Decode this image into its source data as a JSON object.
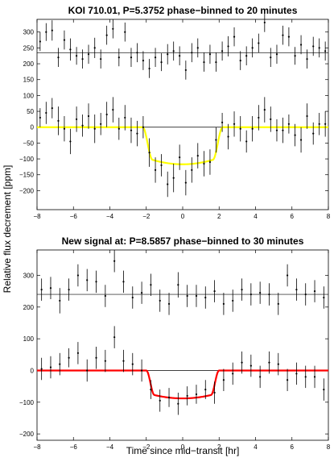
{
  "figure": {
    "ylabel": "Relative flux decrement [ppm]",
    "xlabel": "Time since mid−transit [hr]"
  },
  "chart_data": [
    {
      "type": "scatter",
      "title": "KOI 710.01, P=5.3752 phase−binned to 20 minutes",
      "xlim": [
        -8,
        8
      ],
      "ylim": [
        -260,
        340
      ],
      "xticks": [
        -8,
        -6,
        -4,
        -2,
        0,
        2,
        4,
        6,
        8
      ],
      "yticks": [
        -200,
        -150,
        -100,
        -50,
        0,
        50,
        100,
        150,
        200,
        250,
        300
      ],
      "reference_lines": [
        0,
        235
      ],
      "model_color": "#ffff00",
      "model": {
        "depth": 117,
        "t_start": 2.2,
        "ingress": 0.55
      },
      "series": [
        {
          "offset": 235,
          "x": [
            -7.83,
            -7.5,
            -7.17,
            -6.83,
            -6.5,
            -6.17,
            -5.83,
            -5.5,
            -5.17,
            -4.83,
            -4.5,
            -4.17,
            -3.83,
            -3.5,
            -3.17,
            -2.83,
            -2.5,
            -2.17,
            -1.83,
            -1.5,
            -1.17,
            -0.83,
            -0.5,
            -0.17,
            0.17,
            0.5,
            0.83,
            1.17,
            1.5,
            1.83,
            2.17,
            2.5,
            2.83,
            3.17,
            3.5,
            3.83,
            4.17,
            4.5,
            4.83,
            5.17,
            5.5,
            5.83,
            6.17,
            6.5,
            6.83,
            7.17,
            7.5,
            7.83
          ],
          "y": [
            35,
            65,
            70,
            -15,
            40,
            10,
            -10,
            -20,
            -5,
            15,
            -20,
            55,
            75,
            -15,
            65,
            -15,
            0,
            -25,
            -50,
            -15,
            -30,
            -5,
            5,
            -10,
            -55,
            0,
            15,
            -30,
            -5,
            -30,
            5,
            20,
            50,
            -25,
            -10,
            15,
            30,
            95,
            -15,
            -5,
            55,
            50,
            -10,
            25,
            -20,
            20,
            15,
            5
          ],
          "err": [
            30,
            28,
            32,
            30,
            30,
            35,
            28,
            30,
            30,
            32,
            30,
            30,
            30,
            28,
            30,
            30,
            30,
            30,
            30,
            30,
            28,
            32,
            30,
            30,
            30,
            30,
            30,
            30,
            30,
            30,
            30,
            32,
            30,
            30,
            30,
            30,
            30,
            30,
            30,
            30,
            30,
            30,
            28,
            30,
            30,
            30,
            30,
            30
          ]
        },
        {
          "offset": 0,
          "x": [
            -7.83,
            -7.5,
            -7.17,
            -6.83,
            -6.5,
            -6.17,
            -5.83,
            -5.5,
            -5.17,
            -4.83,
            -4.5,
            -4.17,
            -3.83,
            -3.5,
            -3.17,
            -2.83,
            -2.5,
            -2.17,
            -1.83,
            -1.5,
            -1.17,
            -0.83,
            -0.5,
            -0.17,
            0.17,
            0.5,
            0.83,
            1.17,
            1.5,
            1.83,
            2.17,
            2.5,
            2.83,
            3.17,
            3.5,
            3.83,
            4.17,
            4.5,
            4.83,
            5.17,
            5.5,
            5.83,
            6.17,
            6.5,
            6.83,
            7.17,
            7.5,
            7.83
          ],
          "y": [
            30,
            45,
            60,
            20,
            -5,
            -45,
            25,
            5,
            35,
            -5,
            10,
            40,
            55,
            -5,
            30,
            -10,
            -20,
            0,
            -80,
            -135,
            -120,
            -180,
            -160,
            -95,
            -175,
            -135,
            -90,
            -115,
            -110,
            -40,
            15,
            -30,
            10,
            -5,
            -45,
            -5,
            30,
            55,
            25,
            -10,
            -10,
            10,
            -25,
            -40,
            35,
            -20,
            10,
            10
          ],
          "err": [
            30,
            35,
            32,
            45,
            40,
            40,
            40,
            35,
            40,
            45,
            35,
            40,
            40,
            35,
            40,
            40,
            40,
            35,
            45,
            40,
            35,
            40,
            45,
            40,
            40,
            40,
            40,
            40,
            40,
            40,
            30,
            40,
            40,
            40,
            35,
            40,
            40,
            40,
            40,
            35,
            40,
            30,
            35,
            40,
            40,
            35,
            35,
            40
          ]
        }
      ]
    },
    {
      "type": "scatter",
      "title": "New signal at: P=8.5857 phase−binned to 30 minutes",
      "xlim": [
        -8,
        8
      ],
      "ylim": [
        -220,
        380
      ],
      "xticks": [
        -8,
        -6,
        -4,
        -2,
        0,
        2,
        4,
        6,
        8
      ],
      "yticks": [
        -200,
        -100,
        0,
        100,
        200,
        300
      ],
      "reference_lines": [
        0,
        240
      ],
      "model_color": "#ff0000",
      "model": {
        "depth": 88,
        "t_start": 2.0,
        "ingress": 0.45
      },
      "series": [
        {
          "offset": 240,
          "x": [
            -7.75,
            -7.25,
            -6.75,
            -6.25,
            -5.75,
            -5.25,
            -4.75,
            -4.25,
            -3.75,
            -3.25,
            -2.75,
            -2.25,
            -1.75,
            -1.25,
            -0.75,
            -0.25,
            0.25,
            0.75,
            1.25,
            1.75,
            2.25,
            2.75,
            3.25,
            3.75,
            4.25,
            4.75,
            5.25,
            5.75,
            6.25,
            6.75,
            7.25,
            7.75
          ],
          "y": [
            15,
            20,
            -20,
            15,
            60,
            45,
            40,
            -5,
            105,
            40,
            -10,
            5,
            30,
            -20,
            -30,
            30,
            -5,
            -5,
            -10,
            10,
            -30,
            -20,
            15,
            0,
            5,
            0,
            -30,
            60,
            15,
            0,
            10,
            -10
          ],
          "err": [
            35,
            35,
            40,
            35,
            35,
            35,
            35,
            35,
            35,
            35,
            35,
            35,
            35,
            35,
            35,
            40,
            35,
            35,
            35,
            35,
            35,
            35,
            35,
            35,
            35,
            35,
            35,
            35,
            35,
            35,
            35,
            35
          ]
        },
        {
          "offset": 0,
          "x": [
            -7.75,
            -7.25,
            -6.75,
            -6.25,
            -5.75,
            -5.25,
            -4.75,
            -4.25,
            -3.75,
            -3.25,
            -2.75,
            -2.25,
            -1.75,
            -1.25,
            -0.75,
            -0.25,
            0.25,
            0.75,
            1.25,
            1.75,
            2.25,
            2.75,
            3.25,
            3.75,
            4.25,
            4.75,
            5.25,
            5.75,
            6.25,
            6.75,
            7.25,
            7.75
          ],
          "y": [
            5,
            10,
            20,
            40,
            55,
            0,
            40,
            30,
            105,
            30,
            20,
            0,
            -60,
            -95,
            -85,
            -105,
            -80,
            -75,
            -60,
            -70,
            -30,
            -10,
            25,
            15,
            -20,
            25,
            20,
            -30,
            -10,
            -20,
            -20,
            -60
          ],
          "err": [
            35,
            35,
            35,
            30,
            35,
            35,
            35,
            35,
            35,
            35,
            35,
            35,
            30,
            35,
            30,
            35,
            30,
            30,
            30,
            35,
            35,
            35,
            35,
            35,
            35,
            35,
            35,
            35,
            35,
            35,
            35,
            35
          ]
        }
      ]
    }
  ]
}
